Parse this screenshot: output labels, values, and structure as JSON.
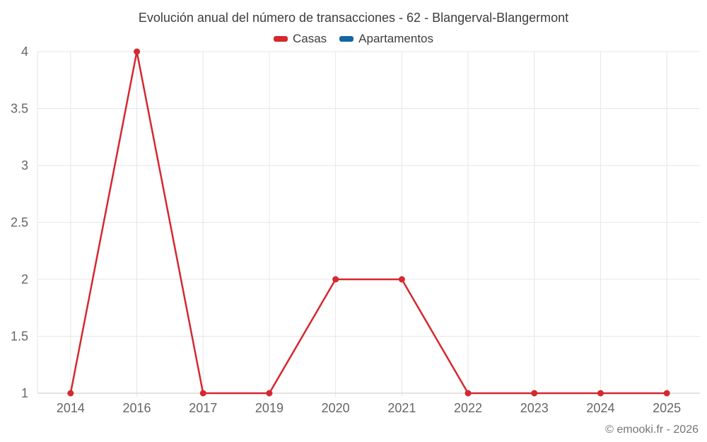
{
  "chart_data": {
    "type": "line",
    "title": "Evolución anual del número de transacciones - 62 - Blangerval-Blangermont",
    "categories": [
      "2014",
      "2016",
      "2017",
      "2019",
      "2020",
      "2021",
      "2022",
      "2023",
      "2024",
      "2025"
    ],
    "series": [
      {
        "name": "Casas",
        "color": "#d5282f",
        "values": [
          1,
          4,
          1,
          1,
          2,
          2,
          1,
          1,
          1,
          1
        ]
      },
      {
        "name": "Apartamentos",
        "color": "#1467a2",
        "values": []
      }
    ],
    "xlabel": "",
    "ylabel": "",
    "ylim": [
      1,
      4
    ],
    "yticks": [
      1,
      1.5,
      2,
      2.5,
      3,
      3.5,
      4
    ],
    "grid": true,
    "legend_position": "top",
    "marker": "circle"
  },
  "footer": {
    "copyright": "© emooki.fr - 2026"
  },
  "style": {
    "grid_color": "#e6e6e6",
    "axis_color": "#c8c8c8",
    "label_color": "#666666",
    "title_color": "#3d3d3d",
    "footer_color": "#757575"
  }
}
